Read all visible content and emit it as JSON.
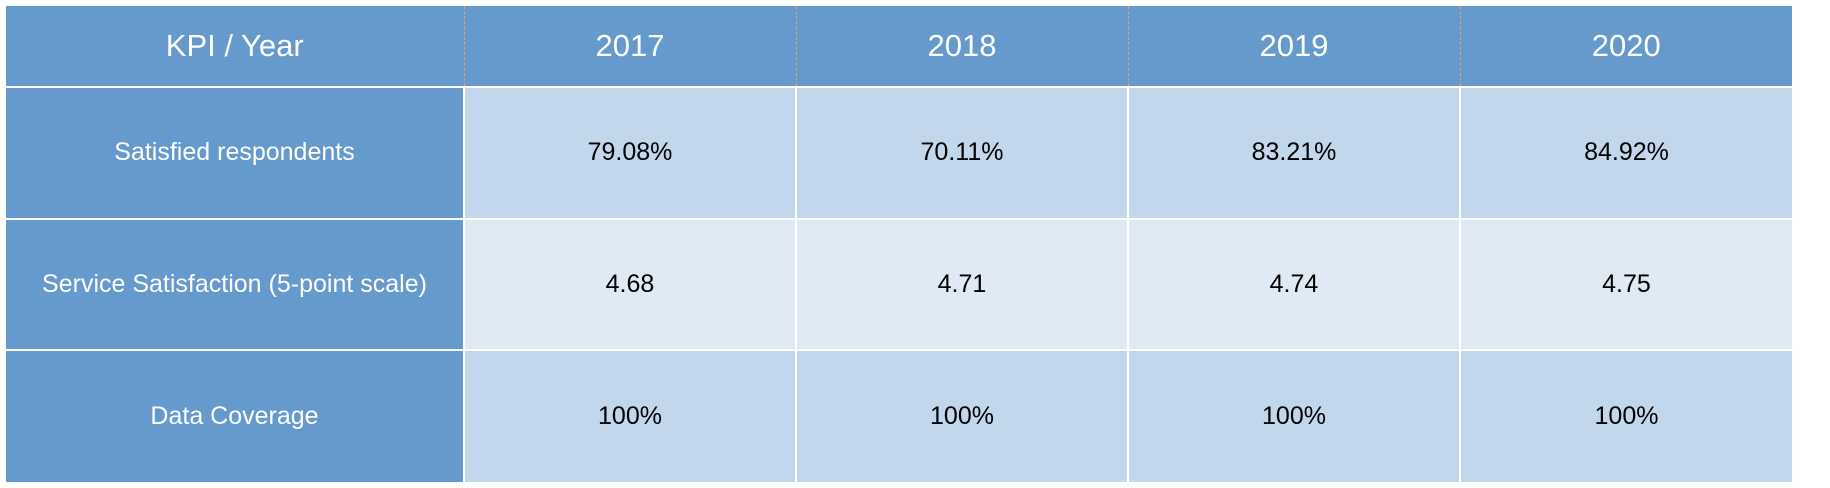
{
  "table": {
    "header": {
      "corner": "KPI / Year",
      "years": [
        "2017",
        "2018",
        "2019",
        "2020"
      ]
    },
    "rows": [
      {
        "label": "Satisfied respondents",
        "values": [
          "79.08%",
          "70.11%",
          "83.21%",
          "84.92%"
        ]
      },
      {
        "label": "Service Satisfaction (5-point scale)",
        "values": [
          "4.68",
          "4.71",
          "4.74",
          "4.75"
        ]
      },
      {
        "label": "Data Coverage",
        "values": [
          "100%",
          "100%",
          "100%",
          "100%"
        ]
      }
    ]
  },
  "colors": {
    "header_bg": "#6699cc",
    "row_odd_bg": "#c2d6ec",
    "row_even_bg": "#e0eaf5",
    "header_divider": "#e8a060"
  }
}
